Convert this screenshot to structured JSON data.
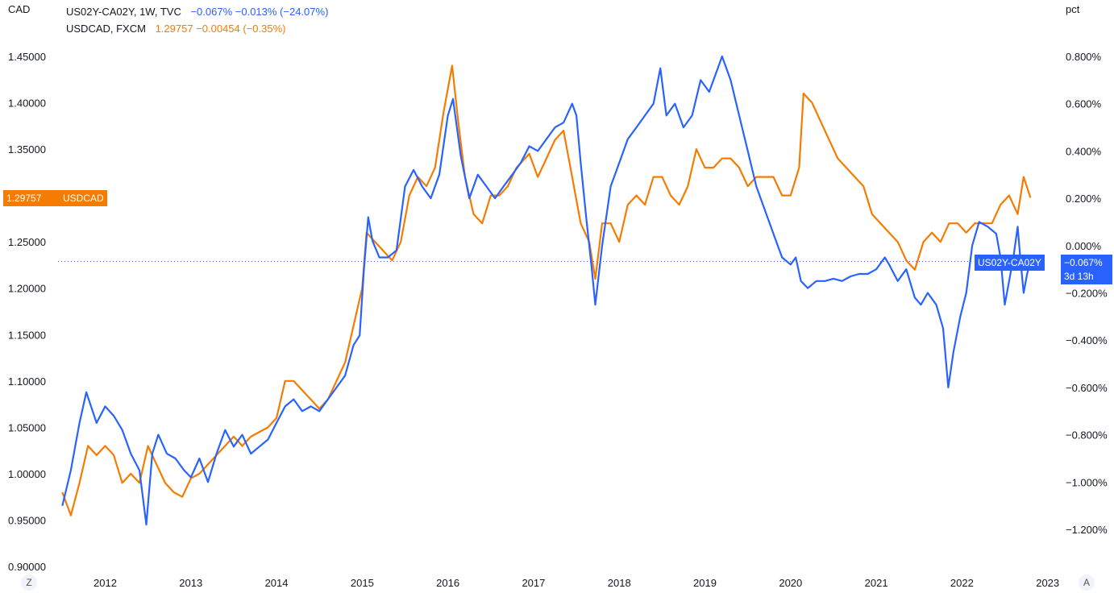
{
  "left_unit": "CAD",
  "right_unit": "pct",
  "legend": [
    {
      "symbol": "US02Y-CA02Y, 1W, TVC",
      "values": "−0.067%  −0.013% (−24.07%)"
    },
    {
      "symbol": "USDCAD, FXCM",
      "values": "1.29757  −0.00454 (−0.35%)"
    }
  ],
  "tags": {
    "usdcad_price": "1.29757",
    "usdcad_name": "USDCAD",
    "spread_name": "US02Y-CA02Y",
    "spread_value": "−0.067%",
    "spread_countdown": "3d 13h"
  },
  "buttons": {
    "zoom": "Z",
    "auto": "A"
  },
  "colors": {
    "spread": "#2962ff",
    "usdcad": "#f57c00",
    "usdcad_tag": "#f57c00",
    "spread_tag": "#2962ff"
  },
  "chart_data": {
    "type": "line",
    "x_ticks": [
      "2012",
      "2013",
      "2014",
      "2015",
      "2016",
      "2017",
      "2018",
      "2019",
      "2020",
      "2021",
      "2022",
      "2023"
    ],
    "x_range": [
      2011.45,
      2023.05
    ],
    "left_axis": {
      "ticks": [
        "0.90000",
        "0.95000",
        "1.00000",
        "1.05000",
        "1.10000",
        "1.15000",
        "1.20000",
        "1.25000",
        "1.35000",
        "1.40000",
        "1.45000"
      ],
      "range": [
        0.9,
        1.45
      ]
    },
    "right_axis": {
      "ticks": [
        "−1.200%",
        "−1.000%",
        "−0.800%",
        "−0.600%",
        "−0.400%",
        "−0.200%",
        "0.000%",
        "0.200%",
        "0.400%",
        "0.600%",
        "0.800%"
      ],
      "range": [
        -1.2,
        0.8
      ]
    },
    "series": [
      {
        "name": "US02Y-CA02Y",
        "axis": "right",
        "points": [
          [
            2011.5,
            -1.1
          ],
          [
            2011.6,
            -0.95
          ],
          [
            2011.7,
            -0.75
          ],
          [
            2011.78,
            -0.62
          ],
          [
            2011.9,
            -0.75
          ],
          [
            2012.0,
            -0.68
          ],
          [
            2012.1,
            -0.72
          ],
          [
            2012.2,
            -0.78
          ],
          [
            2012.3,
            -0.88
          ],
          [
            2012.4,
            -0.95
          ],
          [
            2012.48,
            -1.18
          ],
          [
            2012.55,
            -0.88
          ],
          [
            2012.62,
            -0.8
          ],
          [
            2012.72,
            -0.88
          ],
          [
            2012.82,
            -0.9
          ],
          [
            2012.92,
            -0.95
          ],
          [
            2013.0,
            -0.98
          ],
          [
            2013.1,
            -0.9
          ],
          [
            2013.2,
            -1.0
          ],
          [
            2013.3,
            -0.88
          ],
          [
            2013.4,
            -0.78
          ],
          [
            2013.5,
            -0.85
          ],
          [
            2013.6,
            -0.8
          ],
          [
            2013.7,
            -0.88
          ],
          [
            2013.8,
            -0.85
          ],
          [
            2013.9,
            -0.82
          ],
          [
            2014.0,
            -0.75
          ],
          [
            2014.1,
            -0.68
          ],
          [
            2014.2,
            -0.65
          ],
          [
            2014.3,
            -0.7
          ],
          [
            2014.4,
            -0.68
          ],
          [
            2014.5,
            -0.7
          ],
          [
            2014.6,
            -0.65
          ],
          [
            2014.7,
            -0.6
          ],
          [
            2014.8,
            -0.55
          ],
          [
            2014.9,
            -0.42
          ],
          [
            2014.97,
            -0.38
          ],
          [
            2015.02,
            -0.1
          ],
          [
            2015.07,
            0.12
          ],
          [
            2015.12,
            0.02
          ],
          [
            2015.2,
            -0.05
          ],
          [
            2015.3,
            -0.05
          ],
          [
            2015.4,
            -0.02
          ],
          [
            2015.5,
            0.25
          ],
          [
            2015.6,
            0.32
          ],
          [
            2015.7,
            0.25
          ],
          [
            2015.8,
            0.2
          ],
          [
            2015.9,
            0.3
          ],
          [
            2016.0,
            0.55
          ],
          [
            2016.06,
            0.62
          ],
          [
            2016.15,
            0.38
          ],
          [
            2016.25,
            0.2
          ],
          [
            2016.35,
            0.3
          ],
          [
            2016.45,
            0.25
          ],
          [
            2016.55,
            0.2
          ],
          [
            2016.65,
            0.25
          ],
          [
            2016.75,
            0.3
          ],
          [
            2016.85,
            0.35
          ],
          [
            2016.95,
            0.42
          ],
          [
            2017.05,
            0.4
          ],
          [
            2017.15,
            0.45
          ],
          [
            2017.25,
            0.5
          ],
          [
            2017.35,
            0.52
          ],
          [
            2017.45,
            0.6
          ],
          [
            2017.5,
            0.55
          ],
          [
            2017.55,
            0.35
          ],
          [
            2017.62,
            0.1
          ],
          [
            2017.68,
            -0.1
          ],
          [
            2017.72,
            -0.25
          ],
          [
            2017.8,
            0.0
          ],
          [
            2017.9,
            0.25
          ],
          [
            2018.0,
            0.35
          ],
          [
            2018.1,
            0.45
          ],
          [
            2018.2,
            0.5
          ],
          [
            2018.3,
            0.55
          ],
          [
            2018.4,
            0.6
          ],
          [
            2018.48,
            0.75
          ],
          [
            2018.55,
            0.55
          ],
          [
            2018.65,
            0.6
          ],
          [
            2018.75,
            0.5
          ],
          [
            2018.85,
            0.55
          ],
          [
            2018.95,
            0.7
          ],
          [
            2019.05,
            0.65
          ],
          [
            2019.15,
            0.75
          ],
          [
            2019.2,
            0.8
          ],
          [
            2019.3,
            0.7
          ],
          [
            2019.4,
            0.55
          ],
          [
            2019.5,
            0.4
          ],
          [
            2019.6,
            0.25
          ],
          [
            2019.7,
            0.15
          ],
          [
            2019.8,
            0.05
          ],
          [
            2019.9,
            -0.05
          ],
          [
            2020.0,
            -0.08
          ],
          [
            2020.06,
            -0.05
          ],
          [
            2020.12,
            -0.15
          ],
          [
            2020.2,
            -0.18
          ],
          [
            2020.3,
            -0.15
          ],
          [
            2020.4,
            -0.15
          ],
          [
            2020.5,
            -0.14
          ],
          [
            2020.6,
            -0.15
          ],
          [
            2020.7,
            -0.13
          ],
          [
            2020.8,
            -0.12
          ],
          [
            2020.9,
            -0.12
          ],
          [
            2021.0,
            -0.1
          ],
          [
            2021.1,
            -0.05
          ],
          [
            2021.15,
            -0.08
          ],
          [
            2021.25,
            -0.15
          ],
          [
            2021.35,
            -0.1
          ],
          [
            2021.45,
            -0.22
          ],
          [
            2021.52,
            -0.25
          ],
          [
            2021.6,
            -0.2
          ],
          [
            2021.7,
            -0.25
          ],
          [
            2021.78,
            -0.35
          ],
          [
            2021.84,
            -0.6
          ],
          [
            2021.9,
            -0.45
          ],
          [
            2021.98,
            -0.3
          ],
          [
            2022.05,
            -0.2
          ],
          [
            2022.12,
            0.0
          ],
          [
            2022.2,
            0.1
          ],
          [
            2022.3,
            0.08
          ],
          [
            2022.4,
            0.05
          ],
          [
            2022.45,
            -0.05
          ],
          [
            2022.5,
            -0.25
          ],
          [
            2022.55,
            -0.15
          ],
          [
            2022.6,
            -0.05
          ],
          [
            2022.65,
            0.08
          ],
          [
            2022.68,
            -0.05
          ],
          [
            2022.72,
            -0.2
          ],
          [
            2022.76,
            -0.12
          ],
          [
            2022.8,
            -0.067
          ]
        ]
      },
      {
        "name": "USDCAD",
        "axis": "left",
        "points": [
          [
            2011.5,
            0.98
          ],
          [
            2011.6,
            0.955
          ],
          [
            2011.7,
            0.99
          ],
          [
            2011.8,
            1.03
          ],
          [
            2011.9,
            1.02
          ],
          [
            2012.0,
            1.03
          ],
          [
            2012.1,
            1.02
          ],
          [
            2012.2,
            0.99
          ],
          [
            2012.3,
            1.0
          ],
          [
            2012.4,
            0.99
          ],
          [
            2012.5,
            1.03
          ],
          [
            2012.6,
            1.01
          ],
          [
            2012.7,
            0.99
          ],
          [
            2012.8,
            0.98
          ],
          [
            2012.9,
            0.975
          ],
          [
            2013.0,
            0.995
          ],
          [
            2013.1,
            1.0
          ],
          [
            2013.2,
            1.01
          ],
          [
            2013.3,
            1.02
          ],
          [
            2013.4,
            1.03
          ],
          [
            2013.5,
            1.04
          ],
          [
            2013.6,
            1.03
          ],
          [
            2013.7,
            1.04
          ],
          [
            2013.8,
            1.045
          ],
          [
            2013.9,
            1.05
          ],
          [
            2014.0,
            1.06
          ],
          [
            2014.1,
            1.1
          ],
          [
            2014.2,
            1.1
          ],
          [
            2014.3,
            1.09
          ],
          [
            2014.4,
            1.08
          ],
          [
            2014.5,
            1.07
          ],
          [
            2014.6,
            1.08
          ],
          [
            2014.7,
            1.1
          ],
          [
            2014.8,
            1.12
          ],
          [
            2014.9,
            1.16
          ],
          [
            2015.0,
            1.2
          ],
          [
            2015.05,
            1.26
          ],
          [
            2015.15,
            1.25
          ],
          [
            2015.25,
            1.24
          ],
          [
            2015.35,
            1.23
          ],
          [
            2015.45,
            1.25
          ],
          [
            2015.55,
            1.3
          ],
          [
            2015.65,
            1.32
          ],
          [
            2015.75,
            1.31
          ],
          [
            2015.85,
            1.33
          ],
          [
            2015.95,
            1.39
          ],
          [
            2016.05,
            1.44
          ],
          [
            2016.12,
            1.38
          ],
          [
            2016.2,
            1.32
          ],
          [
            2016.3,
            1.28
          ],
          [
            2016.4,
            1.27
          ],
          [
            2016.5,
            1.3
          ],
          [
            2016.6,
            1.3
          ],
          [
            2016.7,
            1.31
          ],
          [
            2016.8,
            1.33
          ],
          [
            2016.9,
            1.34
          ],
          [
            2016.95,
            1.345
          ],
          [
            2017.05,
            1.32
          ],
          [
            2017.15,
            1.34
          ],
          [
            2017.25,
            1.36
          ],
          [
            2017.35,
            1.37
          ],
          [
            2017.45,
            1.32
          ],
          [
            2017.55,
            1.27
          ],
          [
            2017.65,
            1.25
          ],
          [
            2017.72,
            1.21
          ],
          [
            2017.8,
            1.27
          ],
          [
            2017.9,
            1.27
          ],
          [
            2018.0,
            1.25
          ],
          [
            2018.1,
            1.29
          ],
          [
            2018.2,
            1.3
          ],
          [
            2018.3,
            1.29
          ],
          [
            2018.4,
            1.32
          ],
          [
            2018.5,
            1.32
          ],
          [
            2018.6,
            1.3
          ],
          [
            2018.7,
            1.29
          ],
          [
            2018.8,
            1.31
          ],
          [
            2018.9,
            1.35
          ],
          [
            2019.0,
            1.33
          ],
          [
            2019.1,
            1.33
          ],
          [
            2019.2,
            1.34
          ],
          [
            2019.3,
            1.34
          ],
          [
            2019.4,
            1.33
          ],
          [
            2019.5,
            1.31
          ],
          [
            2019.6,
            1.32
          ],
          [
            2019.7,
            1.32
          ],
          [
            2019.8,
            1.32
          ],
          [
            2019.9,
            1.3
          ],
          [
            2020.0,
            1.3
          ],
          [
            2020.1,
            1.33
          ],
          [
            2020.15,
            1.41
          ],
          [
            2020.25,
            1.4
          ],
          [
            2020.35,
            1.38
          ],
          [
            2020.45,
            1.36
          ],
          [
            2020.55,
            1.34
          ],
          [
            2020.65,
            1.33
          ],
          [
            2020.75,
            1.32
          ],
          [
            2020.85,
            1.31
          ],
          [
            2020.95,
            1.28
          ],
          [
            2021.05,
            1.27
          ],
          [
            2021.15,
            1.26
          ],
          [
            2021.25,
            1.25
          ],
          [
            2021.35,
            1.23
          ],
          [
            2021.45,
            1.22
          ],
          [
            2021.55,
            1.25
          ],
          [
            2021.65,
            1.26
          ],
          [
            2021.75,
            1.25
          ],
          [
            2021.85,
            1.27
          ],
          [
            2021.95,
            1.27
          ],
          [
            2022.05,
            1.26
          ],
          [
            2022.15,
            1.27
          ],
          [
            2022.25,
            1.27
          ],
          [
            2022.35,
            1.27
          ],
          [
            2022.45,
            1.29
          ],
          [
            2022.55,
            1.3
          ],
          [
            2022.65,
            1.28
          ],
          [
            2022.72,
            1.32
          ],
          [
            2022.8,
            1.29757
          ]
        ]
      }
    ],
    "reference_line": {
      "axis": "right",
      "value": -0.067,
      "style": "dotted"
    }
  }
}
